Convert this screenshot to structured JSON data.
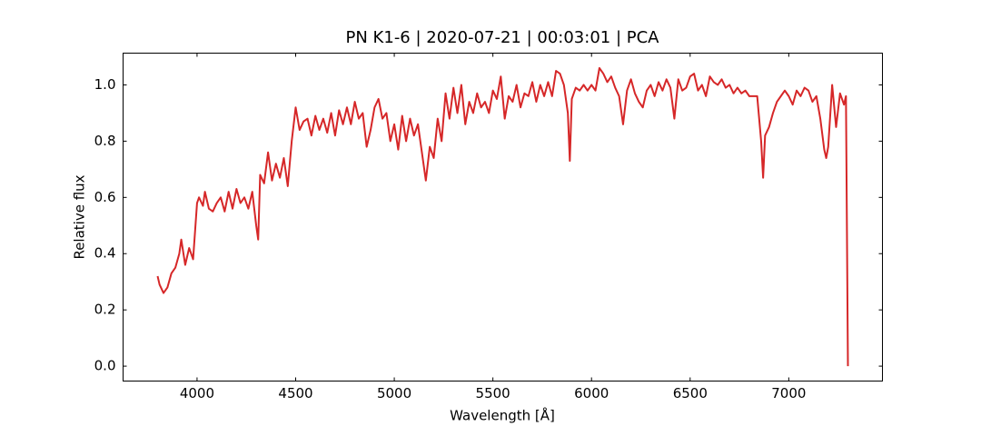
{
  "chart_data": {
    "type": "line",
    "title": "PN K1-6 | 2020-07-21 | 00:03:01 | PCA",
    "x_label": "Wavelength [Å]",
    "y_label": "Relative flux",
    "color": "#d62728",
    "xlim": [
      3625,
      7475
    ],
    "ylim": [
      -0.053,
      1.113
    ],
    "xticks": [
      4000,
      4500,
      5000,
      5500,
      6000,
      6500,
      7000
    ],
    "yticks": [
      {
        "value": 0,
        "label": "0.0"
      },
      0.2,
      0.4,
      0.6,
      0.8,
      {
        "value": 1,
        "label": "1.0"
      }
    ],
    "x": [
      3800,
      3810,
      3830,
      3850,
      3870,
      3890,
      3910,
      3920,
      3940,
      3960,
      3980,
      4000,
      4010,
      4030,
      4040,
      4060,
      4080,
      4100,
      4120,
      4140,
      4160,
      4180,
      4200,
      4220,
      4240,
      4260,
      4280,
      4300,
      4310,
      4320,
      4340,
      4360,
      4380,
      4400,
      4420,
      4440,
      4460,
      4480,
      4500,
      4520,
      4540,
      4560,
      4580,
      4600,
      4620,
      4640,
      4660,
      4680,
      4700,
      4720,
      4740,
      4760,
      4780,
      4800,
      4820,
      4840,
      4860,
      4880,
      4900,
      4920,
      4940,
      4960,
      4980,
      5000,
      5020,
      5040,
      5060,
      5080,
      5100,
      5120,
      5140,
      5160,
      5180,
      5200,
      5220,
      5240,
      5260,
      5280,
      5300,
      5320,
      5340,
      5360,
      5380,
      5400,
      5420,
      5440,
      5460,
      5480,
      5500,
      5520,
      5540,
      5560,
      5580,
      5600,
      5620,
      5640,
      5660,
      5680,
      5700,
      5720,
      5740,
      5760,
      5780,
      5800,
      5820,
      5840,
      5860,
      5880,
      5890,
      5900,
      5920,
      5940,
      5960,
      5980,
      6000,
      6020,
      6040,
      6060,
      6080,
      6100,
      6120,
      6140,
      6160,
      6180,
      6200,
      6220,
      6240,
      6260,
      6280,
      6300,
      6320,
      6340,
      6360,
      6380,
      6400,
      6420,
      6440,
      6460,
      6480,
      6500,
      6520,
      6540,
      6560,
      6580,
      6600,
      6620,
      6640,
      6660,
      6680,
      6700,
      6720,
      6740,
      6760,
      6780,
      6800,
      6820,
      6840,
      6860,
      6870,
      6880,
      6900,
      6920,
      6940,
      6960,
      6980,
      7000,
      7020,
      7040,
      7060,
      7080,
      7100,
      7120,
      7140,
      7160,
      7180,
      7190,
      7200,
      7220,
      7240,
      7260,
      7280,
      7290,
      7300
    ],
    "values": [
      0.32,
      0.29,
      0.26,
      0.28,
      0.33,
      0.35,
      0.4,
      0.45,
      0.36,
      0.42,
      0.38,
      0.58,
      0.6,
      0.57,
      0.62,
      0.56,
      0.55,
      0.58,
      0.6,
      0.55,
      0.62,
      0.56,
      0.63,
      0.58,
      0.6,
      0.56,
      0.62,
      0.5,
      0.45,
      0.68,
      0.65,
      0.76,
      0.66,
      0.72,
      0.67,
      0.74,
      0.64,
      0.8,
      0.92,
      0.84,
      0.87,
      0.88,
      0.82,
      0.89,
      0.84,
      0.88,
      0.83,
      0.9,
      0.82,
      0.91,
      0.86,
      0.92,
      0.86,
      0.94,
      0.88,
      0.9,
      0.78,
      0.84,
      0.92,
      0.95,
      0.88,
      0.9,
      0.8,
      0.86,
      0.77,
      0.89,
      0.8,
      0.88,
      0.82,
      0.86,
      0.76,
      0.66,
      0.78,
      0.74,
      0.88,
      0.8,
      0.97,
      0.88,
      0.99,
      0.9,
      1.0,
      0.86,
      0.94,
      0.9,
      0.97,
      0.92,
      0.94,
      0.9,
      0.98,
      0.95,
      1.03,
      0.88,
      0.96,
      0.94,
      1.0,
      0.92,
      0.97,
      0.96,
      1.01,
      0.94,
      1.0,
      0.96,
      1.01,
      0.96,
      1.05,
      1.04,
      1.0,
      0.9,
      0.73,
      0.95,
      0.99,
      0.98,
      1.0,
      0.98,
      1.0,
      0.98,
      1.06,
      1.04,
      1.01,
      1.03,
      0.99,
      0.96,
      0.86,
      0.98,
      1.02,
      0.97,
      0.94,
      0.92,
      0.98,
      1.0,
      0.96,
      1.01,
      0.98,
      1.02,
      0.99,
      0.88,
      1.02,
      0.98,
      0.99,
      1.03,
      1.04,
      0.98,
      1.0,
      0.96,
      1.03,
      1.01,
      1.0,
      1.02,
      0.99,
      1.0,
      0.97,
      0.99,
      0.97,
      0.98,
      0.96,
      0.96,
      0.96,
      0.8,
      0.67,
      0.82,
      0.85,
      0.9,
      0.94,
      0.96,
      0.98,
      0.96,
      0.93,
      0.98,
      0.96,
      0.99,
      0.98,
      0.94,
      0.96,
      0.88,
      0.77,
      0.74,
      0.78,
      1.0,
      0.85,
      0.97,
      0.93,
      0.96,
      0.0
    ]
  }
}
